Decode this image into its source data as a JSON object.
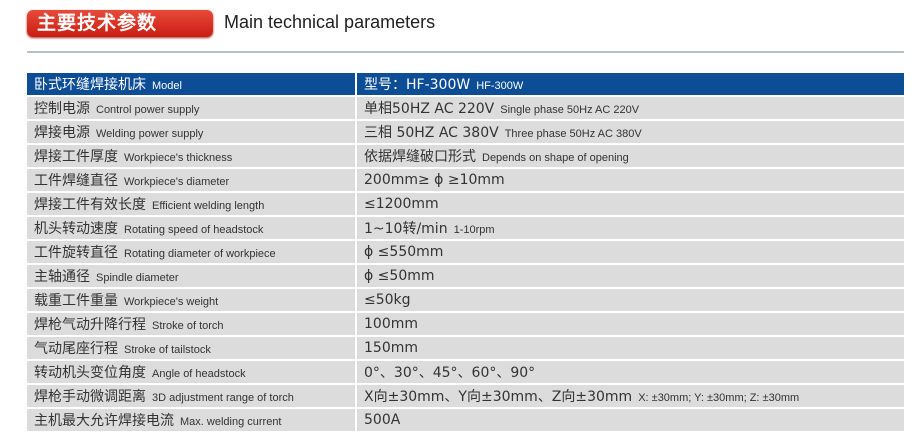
{
  "header": {
    "badge": "主要技术参数",
    "title": "Main technical parameters"
  },
  "colors": {
    "badge": "#d8291c",
    "table_header": "#0c4d96",
    "row": "#dcdcdc"
  },
  "table": {
    "head": {
      "zh": "卧式环缝焊接机床",
      "en": "Model",
      "value_zh": "型号：HF-300W",
      "value_en": "HF-300W"
    },
    "rows": [
      {
        "zh": "控制电源",
        "en": "Control power supply",
        "value_zh": "单相50HZ AC 220V",
        "value_en": "Single phase 50Hz AC 220V"
      },
      {
        "zh": "焊接电源",
        "en": "Welding power supply",
        "value_zh": "三相 50HZ AC 380V",
        "value_en": "Three phase 50Hz AC 380V"
      },
      {
        "zh": "焊接工件厚度",
        "en": "Workpiece's thickness",
        "value_zh": "依据焊缝破口形式",
        "value_en": "Depends on shape of opening"
      },
      {
        "zh": "工件焊缝直径",
        "en": "Workpiece's diameter",
        "value_zh": "200mm≥ ϕ ≥10mm",
        "value_en": ""
      },
      {
        "zh": "焊接工件有效长度",
        "en": "Efficient welding length",
        "value_zh": "≤1200mm",
        "value_en": ""
      },
      {
        "zh": "机头转动速度",
        "en": "Rotating speed of headstock",
        "value_zh": "1~10转/min",
        "value_en": "1-10rpm"
      },
      {
        "zh": "工件旋转直径",
        "en": "Rotating diameter of workpiece",
        "value_zh": "ϕ ≤550mm",
        "value_en": ""
      },
      {
        "zh": "主轴通径",
        "en": "Spindle diameter",
        "value_zh": "ϕ ≤50mm",
        "value_en": ""
      },
      {
        "zh": "载重工件重量",
        "en": "Workpiece's weight",
        "value_zh": "≤50kg",
        "value_en": ""
      },
      {
        "zh": "焊枪气动升降行程",
        "en": "Stroke of torch",
        "value_zh": "100mm",
        "value_en": ""
      },
      {
        "zh": "气动尾座行程",
        "en": "Stroke of tailstock",
        "value_zh": "150mm",
        "value_en": ""
      },
      {
        "zh": "转动机头变位角度",
        "en": "Angle of headstock",
        "value_zh": "0°、30°、45°、60°、90°",
        "value_en": ""
      },
      {
        "zh": "焊枪手动微调距离",
        "en": "3D adjustment range of torch",
        "value_zh": "X向±30mm、Y向±30mm、Z向±30mm",
        "value_en": "X: ±30mm; Y: ±30mm; Z: ±30mm"
      },
      {
        "zh": "主机最大允许焊接电流",
        "en": "Max. welding current",
        "value_zh": "500A",
        "value_en": ""
      }
    ]
  }
}
